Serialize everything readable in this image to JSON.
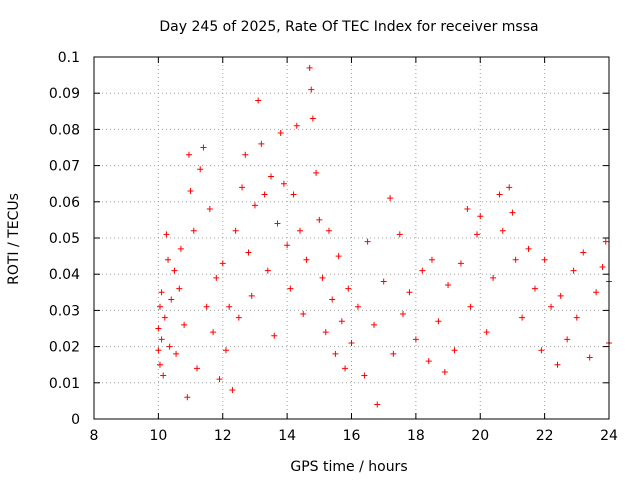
{
  "chart_data": {
    "type": "scatter",
    "title": "Day 245 of 2025, Rate Of TEC Index for receiver mssa",
    "xlabel": "GPS time / hours",
    "ylabel": "ROTI / TECUs",
    "xlim": [
      8,
      24
    ],
    "ylim": [
      0,
      0.1
    ],
    "x_ticks": [
      "8",
      "10",
      "12",
      "14",
      "16",
      "18",
      "20",
      "22",
      "24"
    ],
    "y_ticks": [
      "0",
      "0.01",
      "0.02",
      "0.03",
      "0.04",
      "0.05",
      "0.06",
      "0.07",
      "0.08",
      "0.09",
      "0.1"
    ],
    "grid": true,
    "marker": "+",
    "color": "#ff0000",
    "series": [
      {
        "points": [
          [
            10.0,
            0.019
          ],
          [
            10.0,
            0.025
          ],
          [
            10.05,
            0.015
          ],
          [
            10.05,
            0.031
          ],
          [
            10.1,
            0.022
          ],
          [
            10.1,
            0.035
          ],
          [
            10.15,
            0.012
          ],
          [
            10.2,
            0.028
          ],
          [
            10.25,
            0.051
          ],
          [
            10.3,
            0.044
          ],
          [
            10.35,
            0.02
          ],
          [
            10.4,
            0.033
          ],
          [
            10.5,
            0.041
          ],
          [
            10.55,
            0.018
          ],
          [
            10.65,
            0.036
          ],
          [
            10.7,
            0.047
          ],
          [
            10.8,
            0.026
          ],
          [
            10.9,
            0.006
          ],
          [
            10.95,
            0.073
          ],
          [
            11.0,
            0.063
          ],
          [
            11.1,
            0.052
          ],
          [
            11.2,
            0.014
          ],
          [
            11.3,
            0.069
          ],
          [
            11.4,
            0.075
          ],
          [
            11.5,
            0.031
          ],
          [
            11.6,
            0.058
          ],
          [
            11.7,
            0.024
          ],
          [
            11.8,
            0.039
          ],
          [
            11.9,
            0.011
          ],
          [
            12.0,
            0.043
          ],
          [
            12.1,
            0.019
          ],
          [
            12.2,
            0.031
          ],
          [
            12.3,
            0.008
          ],
          [
            12.4,
            0.052
          ],
          [
            12.5,
            0.028
          ],
          [
            12.6,
            0.064
          ],
          [
            12.7,
            0.073
          ],
          [
            12.8,
            0.046
          ],
          [
            12.9,
            0.034
          ],
          [
            13.0,
            0.059
          ],
          [
            13.1,
            0.088
          ],
          [
            13.2,
            0.076
          ],
          [
            13.3,
            0.062
          ],
          [
            13.4,
            0.041
          ],
          [
            13.5,
            0.067
          ],
          [
            13.6,
            0.023
          ],
          [
            13.7,
            0.054
          ],
          [
            13.8,
            0.079
          ],
          [
            13.9,
            0.065
          ],
          [
            14.0,
            0.048
          ],
          [
            14.1,
            0.036
          ],
          [
            14.2,
            0.062
          ],
          [
            14.3,
            0.081
          ],
          [
            14.4,
            0.052
          ],
          [
            14.5,
            0.029
          ],
          [
            14.6,
            0.044
          ],
          [
            14.7,
            0.097
          ],
          [
            14.75,
            0.091
          ],
          [
            14.8,
            0.083
          ],
          [
            14.9,
            0.068
          ],
          [
            15.0,
            0.055
          ],
          [
            15.1,
            0.039
          ],
          [
            15.2,
            0.024
          ],
          [
            15.3,
            0.052
          ],
          [
            15.4,
            0.033
          ],
          [
            15.5,
            0.018
          ],
          [
            15.6,
            0.045
          ],
          [
            15.7,
            0.027
          ],
          [
            15.8,
            0.014
          ],
          [
            15.9,
            0.036
          ],
          [
            16.0,
            0.021
          ],
          [
            16.2,
            0.031
          ],
          [
            16.4,
            0.012
          ],
          [
            16.5,
            0.049
          ],
          [
            16.7,
            0.026
          ],
          [
            16.8,
            0.004
          ],
          [
            17.0,
            0.038
          ],
          [
            17.2,
            0.061
          ],
          [
            17.3,
            0.018
          ],
          [
            17.5,
            0.051
          ],
          [
            17.6,
            0.029
          ],
          [
            17.8,
            0.035
          ],
          [
            18.0,
            0.022
          ],
          [
            18.2,
            0.041
          ],
          [
            18.4,
            0.016
          ],
          [
            18.5,
            0.044
          ],
          [
            18.7,
            0.027
          ],
          [
            18.9,
            0.013
          ],
          [
            19.0,
            0.037
          ],
          [
            19.2,
            0.019
          ],
          [
            19.4,
            0.043
          ],
          [
            19.6,
            0.058
          ],
          [
            19.7,
            0.031
          ],
          [
            19.9,
            0.051
          ],
          [
            20.0,
            0.056
          ],
          [
            20.2,
            0.024
          ],
          [
            20.4,
            0.039
          ],
          [
            20.6,
            0.062
          ],
          [
            20.7,
            0.052
          ],
          [
            20.9,
            0.064
          ],
          [
            21.0,
            0.057
          ],
          [
            21.1,
            0.044
          ],
          [
            21.3,
            0.028
          ],
          [
            21.5,
            0.047
          ],
          [
            21.7,
            0.036
          ],
          [
            21.9,
            0.019
          ],
          [
            22.0,
            0.044
          ],
          [
            22.2,
            0.031
          ],
          [
            22.4,
            0.015
          ],
          [
            22.5,
            0.034
          ],
          [
            22.7,
            0.022
          ],
          [
            22.9,
            0.041
          ],
          [
            23.0,
            0.028
          ],
          [
            23.2,
            0.046
          ],
          [
            23.4,
            0.017
          ],
          [
            23.6,
            0.035
          ],
          [
            23.8,
            0.042
          ],
          [
            23.9,
            0.049
          ],
          [
            24.0,
            0.021
          ],
          [
            24.0,
            0.038
          ]
        ]
      }
    ]
  }
}
